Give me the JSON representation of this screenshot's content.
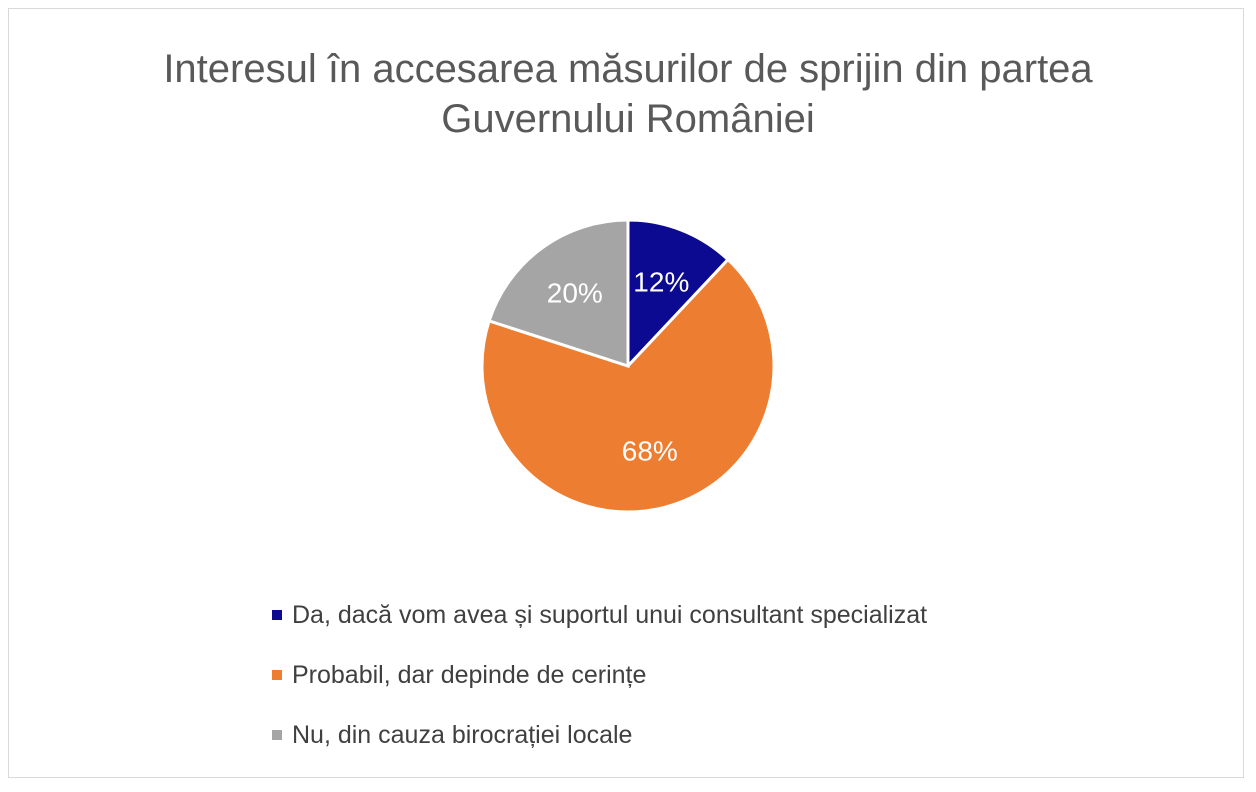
{
  "chart_data": {
    "type": "pie",
    "title_lines": [
      "Interesul în accesarea măsurilor de sprijin din partea",
      "Guvernului României"
    ],
    "slices": [
      {
        "label": "Da, dacă vom avea și suportul unui consultant specializat",
        "value": 12,
        "display": "12%",
        "color": "#0b0a91"
      },
      {
        "label": "Probabil, dar depinde de cerințe",
        "value": 68,
        "display": "68%",
        "color": "#ed7d31"
      },
      {
        "label": "Nu, din cauza birocrației locale",
        "value": 20,
        "display": "20%",
        "color": "#a5a5a5"
      }
    ],
    "legend_position": "bottom"
  }
}
